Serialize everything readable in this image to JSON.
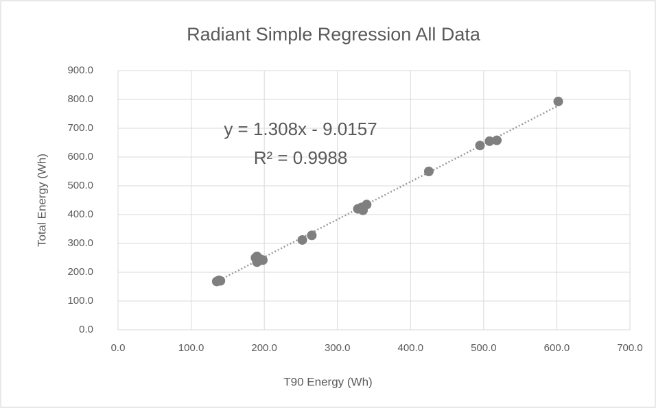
{
  "chart_data": {
    "type": "scatter",
    "title": "Radiant Simple Regression All Data",
    "x_label": "T90 Energy (Wh)",
    "y_label": "Total Energy (Wh)",
    "x": [
      135,
      138,
      140,
      188,
      190,
      192,
      195,
      198,
      190,
      252,
      265,
      328,
      333,
      335,
      340,
      425,
      495,
      508,
      518,
      602
    ],
    "y": [
      168,
      172,
      170,
      250,
      255,
      240,
      245,
      242,
      235,
      312,
      328,
      420,
      425,
      415,
      435,
      550,
      640,
      655,
      658,
      793
    ],
    "color": "#7f7f7f",
    "trendline": {
      "slope": 1.308,
      "intercept": -9.0157,
      "color": "#999999",
      "equation": "y = 1.308x - 9.0157",
      "r2": "R² = 0.9988"
    },
    "xlim": [
      0,
      700
    ],
    "ylim": [
      0,
      900
    ],
    "xticks": [
      {
        "value": 0,
        "label": "0.0"
      },
      {
        "value": 100,
        "label": "100.0"
      },
      {
        "value": 200,
        "label": "200.0"
      },
      {
        "value": 300,
        "label": "300.0"
      },
      {
        "value": 400,
        "label": "400.0"
      },
      {
        "value": 500,
        "label": "500.0"
      },
      {
        "value": 600,
        "label": "600.0"
      },
      {
        "value": 700,
        "label": "700.0"
      }
    ],
    "yticks": [
      {
        "value": 0,
        "label": "0.0"
      },
      {
        "value": 100,
        "label": "100.0"
      },
      {
        "value": 200,
        "label": "200.0"
      },
      {
        "value": 300,
        "label": "300.0"
      },
      {
        "value": 400,
        "label": "400.0"
      },
      {
        "value": 500,
        "label": "500.0"
      },
      {
        "value": 600,
        "label": "600.0"
      },
      {
        "value": 700,
        "label": "700.0"
      },
      {
        "value": 800,
        "label": "800.0"
      },
      {
        "value": 900,
        "label": "900.0"
      }
    ],
    "grid": true
  }
}
